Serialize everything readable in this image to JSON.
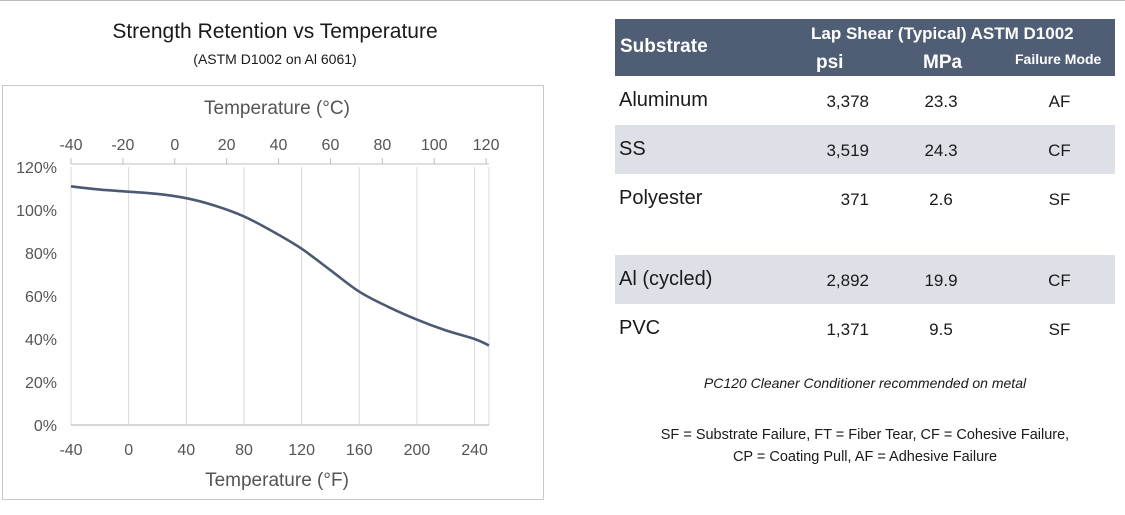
{
  "chart": {
    "title": "Strength Retention vs Temperature",
    "subtitle": "(ASTM D1002 on Al 6061)",
    "top_axis_title": "Temperature (°C)",
    "bottom_axis_title": "Temperature (°F)",
    "line_color": "#4b5a73"
  },
  "chart_data": {
    "type": "line",
    "title": "Strength Retention vs Temperature",
    "subtitle": "(ASTM D1002 on Al 6061)",
    "xlabel": "Temperature (°F)",
    "x2label": "Temperature (°C)",
    "ylabel": "",
    "xlim": [
      -40,
      250
    ],
    "ylim": [
      0,
      120
    ],
    "x_ticks": [
      -40,
      0,
      40,
      80,
      120,
      160,
      200,
      240
    ],
    "x2_ticks": [
      -40,
      -20,
      0,
      20,
      40,
      60,
      80,
      100,
      120
    ],
    "y_ticks": [
      "0%",
      "20%",
      "40%",
      "60%",
      "80%",
      "100%",
      "120%"
    ],
    "grid": "vertical",
    "series": [
      {
        "x": [
          -40,
          -20,
          0,
          20,
          40,
          60,
          80,
          100,
          120,
          140,
          160,
          180,
          200,
          220,
          240,
          250
        ],
        "y": [
          111,
          109.5,
          108.5,
          107.5,
          105.5,
          102,
          97,
          90,
          82,
          72,
          62,
          55,
          49,
          44,
          40,
          37
        ]
      }
    ]
  },
  "table": {
    "header": {
      "substrate": "Substrate",
      "lap_shear": "Lap Shear (Typical) ASTM D1002",
      "psi": "psi",
      "mpa": "MPa",
      "failure_mode": "Failure Mode"
    },
    "rows": [
      {
        "substrate": "Aluminum",
        "psi": "3,378",
        "mpa": "23.3",
        "mode": "AF"
      },
      {
        "substrate": "SS",
        "psi": "3,519",
        "mpa": "24.3",
        "mode": "CF"
      },
      {
        "substrate": "Polyester",
        "psi": "371",
        "mpa": "2.6",
        "mode": "SF"
      },
      {
        "substrate": "Al (cycled)",
        "psi": "2,892",
        "mpa": "19.9",
        "mode": "CF"
      },
      {
        "substrate": "PVC",
        "psi": "1,371",
        "mpa": "9.5",
        "mode": "SF"
      }
    ],
    "note": "PC120 Cleaner Conditioner recommended on metal",
    "legend_line1": "SF = Substrate Failure, FT = Fiber Tear, CF = Cohesive Failure,",
    "legend_line2": "CP = Coating Pull, AF = Adhesive Failure",
    "header_color": "#4f5d75",
    "shade_color": "#dde0e6"
  }
}
